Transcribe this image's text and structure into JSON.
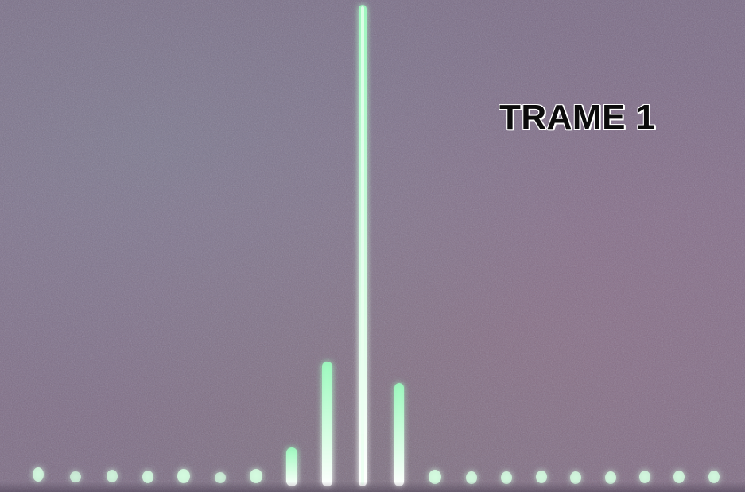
{
  "photo": {
    "caption": "TRAME 1",
    "background_color": "#7d6b86",
    "spot_color": "#c8ffd8",
    "glow_color": "#3dff8a"
  }
}
